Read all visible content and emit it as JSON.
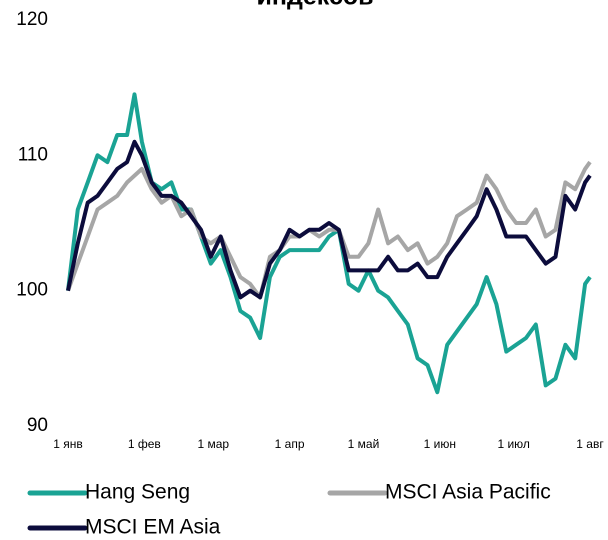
{
  "chart_data": {
    "type": "line",
    "title": "индексов",
    "x": [
      0,
      4,
      8,
      12,
      16,
      20,
      24,
      27,
      30,
      34,
      38,
      42,
      46,
      50,
      54,
      58,
      62,
      66,
      70,
      74,
      78,
      82,
      86,
      90,
      94,
      98,
      102,
      106,
      110,
      114,
      118,
      122,
      126,
      130,
      134,
      138,
      142,
      146,
      150,
      154,
      158,
      162,
      166,
      170,
      174,
      178,
      182,
      186,
      190,
      194,
      198,
      202,
      206,
      210,
      212
    ],
    "series": [
      {
        "name": "Hang Seng",
        "color": "#1aa394",
        "values": [
          100,
          106,
          108,
          110,
          109.5,
          111.5,
          111.5,
          114.5,
          111,
          108,
          107.5,
          108,
          106,
          106,
          104,
          102,
          103,
          101,
          98.5,
          98,
          96.5,
          101,
          102.5,
          103,
          103,
          103,
          103,
          104,
          104.5,
          100.5,
          100,
          101.5,
          100,
          99.5,
          98.5,
          97.5,
          95,
          94.5,
          92.5,
          96,
          97,
          98,
          99,
          101,
          99,
          95.5,
          96,
          96.5,
          97.5,
          93,
          93.5,
          96,
          95,
          100.5,
          101
        ]
      },
      {
        "name": "MSCI Asia Pacific",
        "color": "#a6a6a6",
        "values": [
          100,
          102,
          104,
          106,
          106.5,
          107,
          108,
          108.5,
          109,
          107.5,
          106.5,
          107,
          105.5,
          106,
          104,
          103.5,
          104,
          102.5,
          101,
          100.5,
          99.5,
          102.5,
          103,
          104,
          104,
          104.5,
          104,
          104.5,
          104.5,
          102.5,
          102.5,
          103.5,
          106,
          103.5,
          104,
          103,
          103.5,
          102,
          102.5,
          103.5,
          105.5,
          106,
          106.5,
          108.5,
          107.5,
          106,
          105,
          105,
          106,
          104,
          104.5,
          108,
          107.5,
          109,
          109.5
        ]
      },
      {
        "name": "MSCI EM Asia",
        "color": "#0c0c3c",
        "values": [
          100,
          103.5,
          106.5,
          107,
          108,
          109,
          109.5,
          111,
          110,
          108,
          107,
          107,
          106.5,
          105.5,
          104.5,
          102.5,
          104,
          101.5,
          99.5,
          100,
          99.5,
          102,
          103,
          104.5,
          104,
          104.5,
          104.5,
          105,
          104.5,
          101.5,
          101.5,
          101.5,
          101.5,
          102.5,
          101.5,
          101.5,
          102,
          101,
          101,
          102.5,
          103.5,
          104.5,
          105.5,
          107.5,
          106,
          104,
          104,
          104,
          103,
          102,
          102.5,
          107,
          106,
          108,
          108.5
        ]
      }
    ],
    "xlim": [
      0,
      212
    ],
    "xticks": [
      {
        "value": 0,
        "label": "1 янв"
      },
      {
        "value": 31,
        "label": "1 фев"
      },
      {
        "value": 59,
        "label": "1 мар"
      },
      {
        "value": 90,
        "label": "1 апр"
      },
      {
        "value": 120,
        "label": "1 май"
      },
      {
        "value": 151,
        "label": "1 июн"
      },
      {
        "value": 181,
        "label": "1 июл"
      },
      {
        "value": 212,
        "label": "1 авг"
      }
    ],
    "ylim": [
      90,
      120
    ],
    "yticks": [
      90,
      100,
      110,
      120
    ],
    "grid": false
  }
}
